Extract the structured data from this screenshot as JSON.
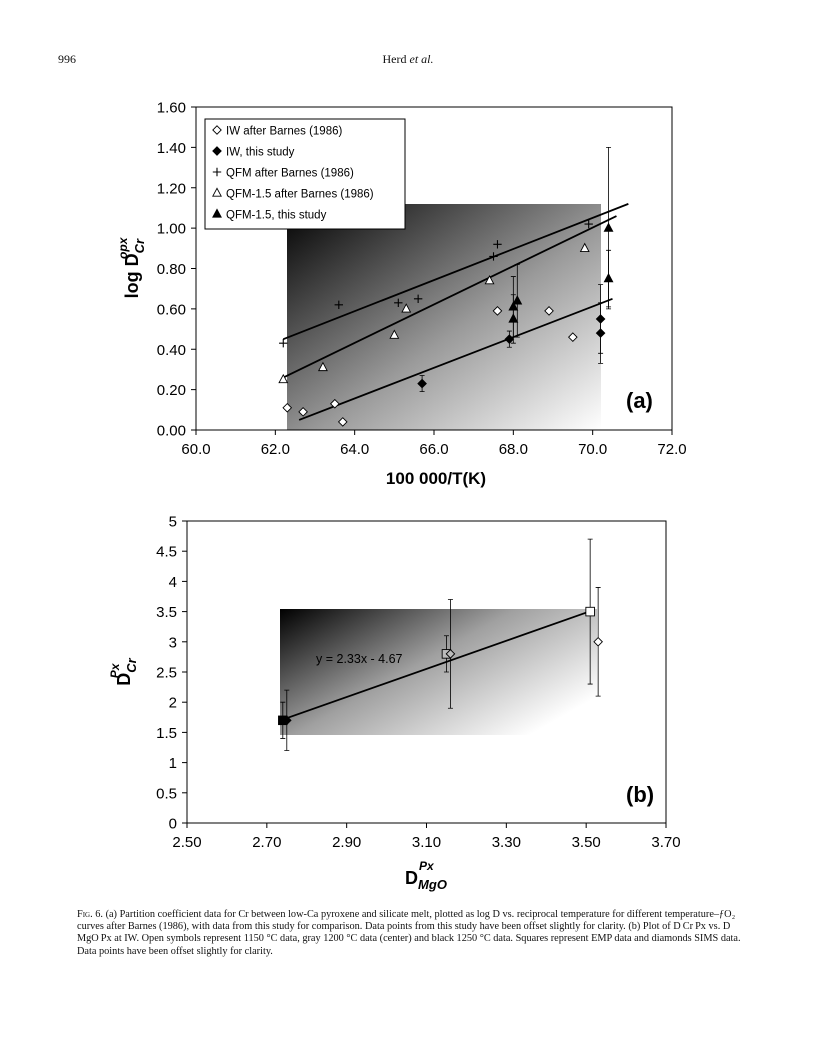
{
  "header": {
    "page_number": "996",
    "authors": "Herd",
    "authors_suffix": "et al."
  },
  "chart_data": [
    {
      "type": "scatter",
      "panel_label": "(a)",
      "xlabel": "100 000/T(K)",
      "ylabel_main": "log D",
      "ylabel_sub": "Cr",
      "ylabel_sup": "opx",
      "xlim": [
        60.0,
        72.0
      ],
      "ylim": [
        0.0,
        1.6
      ],
      "xticks": [
        "60.0",
        "62.0",
        "64.0",
        "66.0",
        "68.0",
        "70.0",
        "72.0"
      ],
      "yticks": [
        "0.00",
        "0.20",
        "0.40",
        "0.60",
        "0.80",
        "1.00",
        "1.20",
        "1.40",
        "1.60"
      ],
      "legend_position": "top-left",
      "grid": false,
      "series": [
        {
          "name": "IW after Barnes (1986)",
          "marker": "diamond-open",
          "points": [
            [
              62.3,
              0.11
            ],
            [
              62.7,
              0.09
            ],
            [
              63.5,
              0.13
            ],
            [
              63.7,
              0.04
            ],
            [
              67.6,
              0.59
            ],
            [
              68.9,
              0.59
            ],
            [
              69.5,
              0.46
            ]
          ]
        },
        {
          "name": "IW, this study",
          "marker": "diamond-filled",
          "points": [
            [
              65.7,
              0.23
            ],
            [
              67.9,
              0.45
            ],
            [
              70.2,
              0.48
            ],
            [
              70.2,
              0.55
            ]
          ],
          "errors": [
            0.04,
            0.04,
            0.15,
            0.17
          ]
        },
        {
          "name": "QFM after Barnes (1986)",
          "marker": "plus",
          "points": [
            [
              62.2,
              0.43
            ],
            [
              63.6,
              0.62
            ],
            [
              65.1,
              0.63
            ],
            [
              65.6,
              0.65
            ],
            [
              67.5,
              0.86
            ],
            [
              67.6,
              0.92
            ],
            [
              69.9,
              1.02
            ]
          ]
        },
        {
          "name": "QFM-1.5 after Barnes (1986)",
          "marker": "triangle-open",
          "points": [
            [
              62.2,
              0.25
            ],
            [
              63.2,
              0.31
            ],
            [
              65.0,
              0.47
            ],
            [
              65.3,
              0.6
            ],
            [
              67.4,
              0.74
            ],
            [
              69.8,
              0.9
            ]
          ]
        },
        {
          "name": "QFM-1.5, this study",
          "marker": "triangle-filled",
          "points": [
            [
              68.0,
              0.55
            ],
            [
              68.0,
              0.61
            ],
            [
              68.1,
              0.64
            ],
            [
              70.4,
              1.0
            ],
            [
              70.4,
              0.75
            ]
          ],
          "errors": [
            0.12,
            0.15,
            0.18,
            0.4,
            0.14
          ]
        }
      ],
      "fit_lines": [
        {
          "x": [
            62.2,
            70.9
          ],
          "y": [
            0.45,
            1.12
          ]
        },
        {
          "x": [
            62.2,
            70.6
          ],
          "y": [
            0.26,
            1.06
          ]
        },
        {
          "x": [
            62.6,
            70.5
          ],
          "y": [
            0.05,
            0.65
          ]
        }
      ]
    },
    {
      "type": "scatter",
      "panel_label": "(b)",
      "xlabel_main": "D",
      "xlabel_sub": "MgO",
      "xlabel_sup": "Px",
      "ylabel_main": "D",
      "ylabel_sub": "Cr",
      "ylabel_sup": "Px",
      "xlim": [
        2.5,
        3.7
      ],
      "ylim": [
        0,
        5
      ],
      "xticks": [
        "2.50",
        "2.70",
        "2.90",
        "3.10",
        "3.30",
        "3.50",
        "3.70"
      ],
      "yticks": [
        "0",
        "0.5",
        "1",
        "1.5",
        "2",
        "2.5",
        "3",
        "3.5",
        "4",
        "4.5",
        "5"
      ],
      "grid": false,
      "equation": "y = 2.33x - 4.67",
      "series": [
        {
          "name": "",
          "marker": "square",
          "points": [
            [
              2.74,
              1.7
            ],
            [
              3.15,
              2.8
            ],
            [
              3.51,
              3.5
            ]
          ],
          "errors": [
            0.3,
            0.3,
            1.2
          ],
          "fill": [
            "#000000",
            "#bbbbbb",
            "#ffffff"
          ]
        },
        {
          "name": "",
          "marker": "diamond",
          "points": [
            [
              2.75,
              1.7
            ],
            [
              3.16,
              2.8
            ],
            [
              3.53,
              3.0
            ]
          ],
          "errors": [
            0.5,
            0.9,
            0.9
          ],
          "fill": [
            "#000000",
            "#bbbbbb",
            "#ffffff"
          ]
        }
      ],
      "fit_lines": [
        {
          "x": [
            2.73,
            3.52
          ],
          "y": [
            1.69,
            3.53
          ]
        }
      ]
    }
  ],
  "caption": {
    "label": "Fig. 6.",
    "text": "(a) Partition coefficient data for Cr between low-Ca pyroxene and silicate melt, plotted as log D vs. reciprocal temperature for different temperature–ƒO₂ curves after Barnes (1986), with data from this study for comparison. Data points from this study have been offset slightly for clarity. (b) Plot of D Cr Px vs. D MgO Px at IW. Open symbols represent 1150 °C data, gray 1200 °C data (center) and black 1250 °C data. Squares represent EMP data and diamonds SIMS data. Data points have been offset slightly for clarity."
  }
}
